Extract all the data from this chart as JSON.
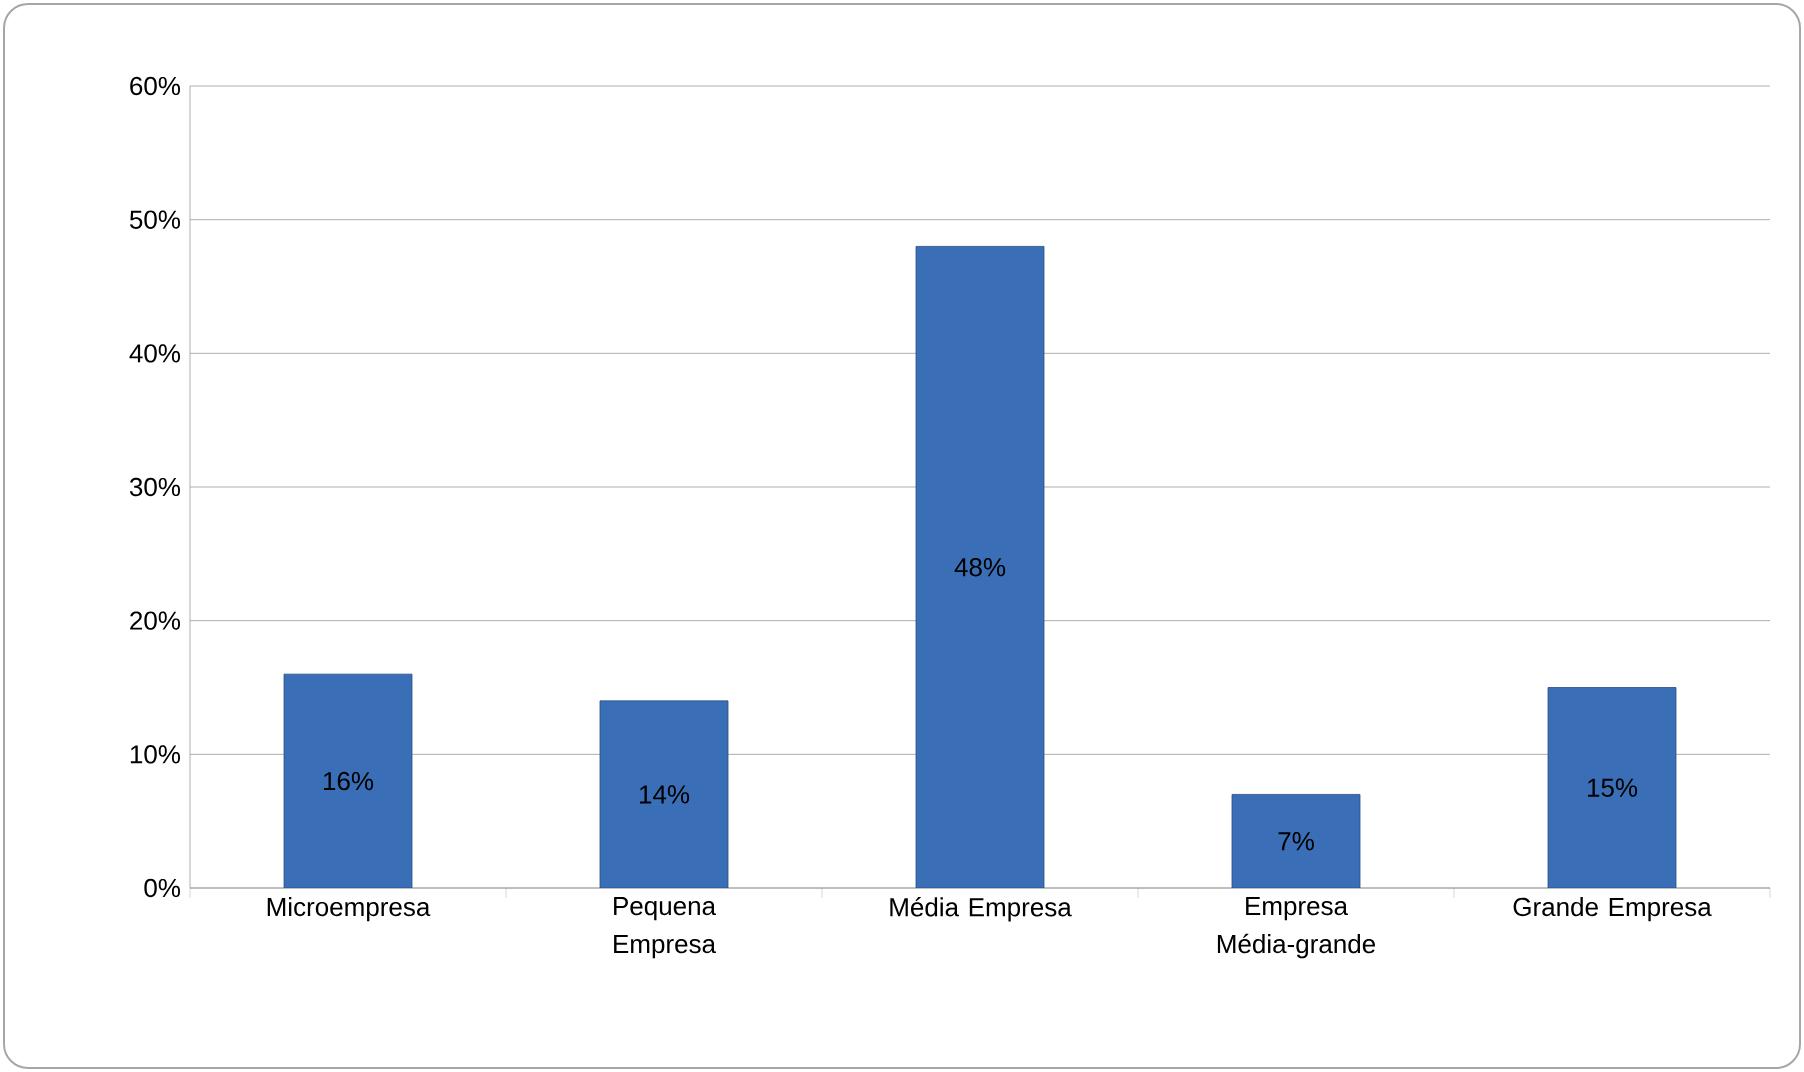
{
  "chart_data": {
    "type": "bar",
    "categories": [
      "Microempresa",
      "Pequena Empresa",
      "Média Empresa",
      "Empresa Média-grande",
      "Grande Empresa"
    ],
    "values": [
      16,
      14,
      48,
      7,
      15
    ],
    "value_labels": [
      "16%",
      "14%",
      "48%",
      "7%",
      "15%"
    ],
    "color": "#3a6fb8",
    "ylim": [
      0,
      60
    ],
    "yticks": [
      {
        "value": 0,
        "label": "0%"
      },
      {
        "value": 10,
        "label": "10%"
      },
      {
        "value": 20,
        "label": "20%"
      },
      {
        "value": 30,
        "label": "30%"
      },
      {
        "value": 40,
        "label": "40%"
      },
      {
        "value": 50,
        "label": "50%"
      },
      {
        "value": 60,
        "label": "60%"
      }
    ],
    "grid": "y"
  }
}
